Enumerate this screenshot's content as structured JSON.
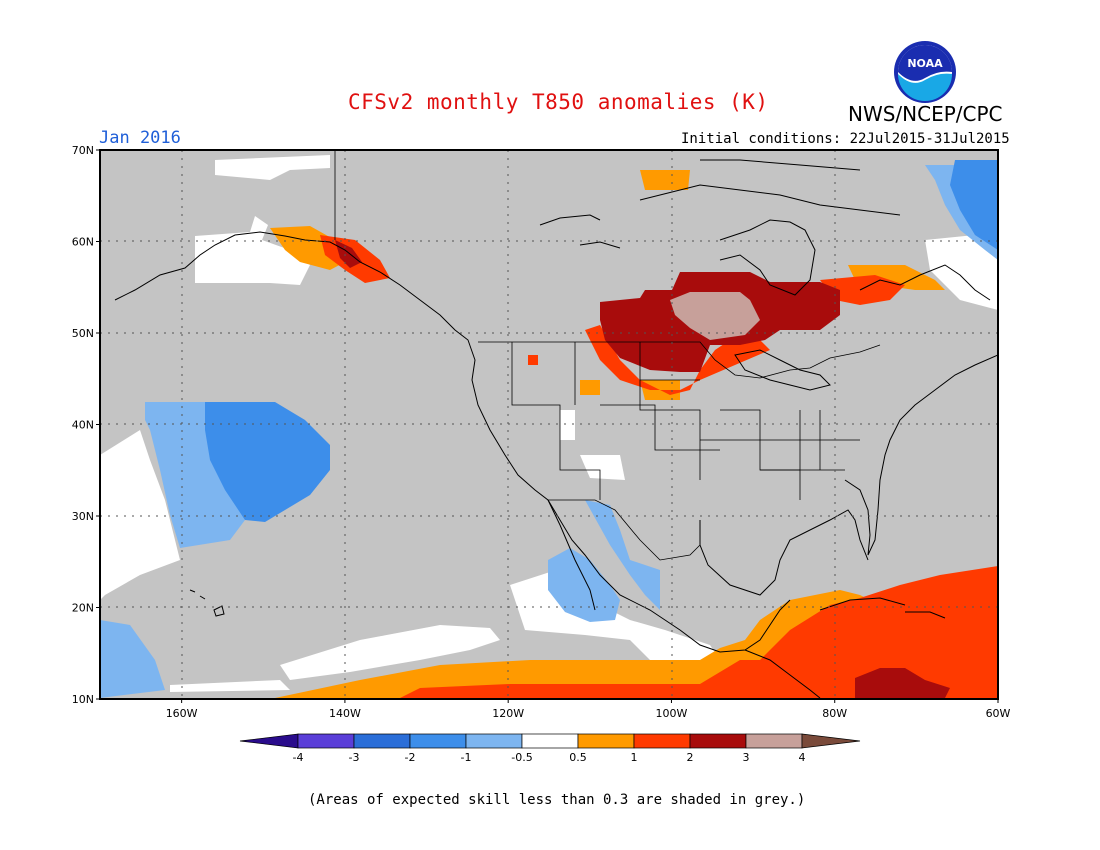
{
  "header": {
    "title": "CFSv2 monthly T850 anomalies (K)",
    "org": "NWS/NCEP/CPC",
    "month": "Jan 2016",
    "initial_conditions": "Initial conditions: 22Jul2015-31Jul2015",
    "logo_text": "NOAA"
  },
  "footnote": "(Areas of expected skill less than 0.3 are shaded in grey.)",
  "map": {
    "projection": "lat-lon",
    "lat_range": [
      10,
      70
    ],
    "lon_range": [
      -170,
      -60
    ],
    "y_ticks": [
      {
        "lat": 70,
        "label": "70N"
      },
      {
        "lat": 60,
        "label": "60N"
      },
      {
        "lat": 50,
        "label": "50N"
      },
      {
        "lat": 40,
        "label": "40N"
      },
      {
        "lat": 30,
        "label": "30N"
      },
      {
        "lat": 20,
        "label": "20N"
      },
      {
        "lat": 10,
        "label": "10N"
      }
    ],
    "x_ticks": [
      {
        "lon": -160,
        "label": "160W"
      },
      {
        "lon": -140,
        "label": "140W"
      },
      {
        "lon": -120,
        "label": "120W"
      },
      {
        "lon": -100,
        "label": "100W"
      },
      {
        "lon": -80,
        "label": "80W"
      },
      {
        "lon": -60,
        "label": "60W"
      }
    ],
    "grid": "dotted",
    "background_class": "grey (skill < 0.3)",
    "colors": {
      "grey": "#c4c4c4",
      "white": "#ffffff",
      "neg_0_5_1": "#7db5f0",
      "neg_1_2": "#3d8eea",
      "pos_0_5_1": "#ff9a00",
      "pos_1_2": "#ff3a00",
      "pos_2_3": "#a80c0c",
      "pos_3_4": "#c7a09a",
      "land": "#000000"
    },
    "regions": [
      {
        "name": "N Pacific warm 0.5-1",
        "class": "pos_0_5_1"
      },
      {
        "name": "Gulf of Alaska warm 1-2",
        "class": "pos_1_2"
      },
      {
        "name": "Central Pacific cold",
        "class": "neg_1_2"
      },
      {
        "name": "Central Canada warm 2-3",
        "class": "pos_2_3"
      },
      {
        "name": "Central Canada warm 3-4",
        "class": "pos_3_4"
      },
      {
        "name": "Caribbean warm 1-2",
        "class": "pos_1_2"
      },
      {
        "name": "Tropical Pacific warm 0.5-1",
        "class": "pos_0_5_1"
      },
      {
        "name": "Labrador Sea cold",
        "class": "neg_1_2"
      }
    ]
  },
  "colorbar": {
    "labels": [
      "-4",
      "-3",
      "-2",
      "-1",
      "-0.5",
      "0.5",
      "1",
      "2",
      "3",
      "4"
    ],
    "colors": [
      "#2a0c8c",
      "#5a3ed8",
      "#2b6ed8",
      "#3d8eea",
      "#7db5f0",
      "#ffffff",
      "#ff9a00",
      "#ff3a00",
      "#a80c0c",
      "#c7a09a",
      "#7a4a3a"
    ]
  }
}
